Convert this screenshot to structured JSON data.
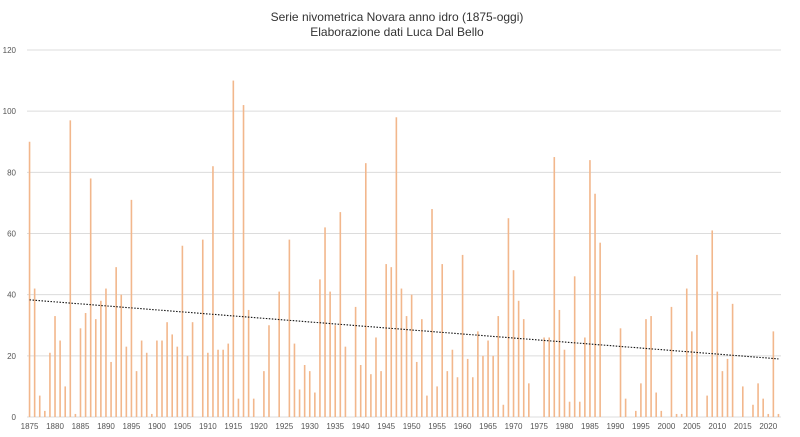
{
  "chart_data": {
    "type": "bar",
    "title": "Serie nivometrica Novara anno idro (1875-oggi)",
    "subtitle": "Elaborazione dati Luca Dal Bello",
    "xlabel": "",
    "ylabel": "",
    "ylim": [
      0,
      120
    ],
    "yticks": [
      "0",
      "20",
      "40",
      "60",
      "80",
      "100",
      "120"
    ],
    "xticks": [
      "1875",
      "1880",
      "1885",
      "1890",
      "1895",
      "1900",
      "1905",
      "1910",
      "1915",
      "1920",
      "1925",
      "1930",
      "1935",
      "1940",
      "1945",
      "1950",
      "1955",
      "1960",
      "1965",
      "1970",
      "1975",
      "1980",
      "1985",
      "1990",
      "1995",
      "2000",
      "2005",
      "2010",
      "2015",
      "2020"
    ],
    "grid": true,
    "legend": "none",
    "x_start": 1875,
    "categories": [
      1875,
      1876,
      1877,
      1878,
      1879,
      1880,
      1881,
      1882,
      1883,
      1884,
      1885,
      1886,
      1887,
      1888,
      1889,
      1890,
      1891,
      1892,
      1893,
      1894,
      1895,
      1896,
      1897,
      1898,
      1899,
      1900,
      1901,
      1902,
      1903,
      1904,
      1905,
      1906,
      1907,
      1908,
      1909,
      1910,
      1911,
      1912,
      1913,
      1914,
      1915,
      1916,
      1917,
      1918,
      1919,
      1920,
      1921,
      1922,
      1923,
      1924,
      1925,
      1926,
      1927,
      1928,
      1929,
      1930,
      1931,
      1932,
      1933,
      1934,
      1935,
      1936,
      1937,
      1938,
      1939,
      1940,
      1941,
      1942,
      1943,
      1944,
      1945,
      1946,
      1947,
      1948,
      1949,
      1950,
      1951,
      1952,
      1953,
      1954,
      1955,
      1956,
      1957,
      1958,
      1959,
      1960,
      1961,
      1962,
      1963,
      1964,
      1965,
      1966,
      1967,
      1968,
      1969,
      1970,
      1971,
      1972,
      1973,
      1974,
      1975,
      1976,
      1977,
      1978,
      1979,
      1980,
      1981,
      1982,
      1983,
      1984,
      1985,
      1986,
      1987,
      1988,
      1989,
      1990,
      1991,
      1992,
      1993,
      1994,
      1995,
      1996,
      1997,
      1998,
      1999,
      2000,
      2001,
      2002,
      2003,
      2004,
      2005,
      2006,
      2007,
      2008,
      2009,
      2010,
      2011,
      2012,
      2013,
      2014,
      2015,
      2016,
      2017,
      2018,
      2019,
      2020,
      2021,
      2022
    ],
    "values": [
      90,
      42,
      7,
      2,
      21,
      33,
      25,
      10,
      97,
      1,
      29,
      34,
      78,
      32,
      38,
      42,
      18,
      49,
      40,
      23,
      71,
      15,
      25,
      21,
      1,
      25,
      25,
      31,
      27,
      23,
      56,
      20,
      31,
      0,
      58,
      21,
      82,
      22,
      22,
      24,
      110,
      6,
      102,
      35,
      6,
      0,
      15,
      30,
      0,
      41,
      0,
      58,
      24,
      9,
      17,
      15,
      8,
      45,
      62,
      41,
      30,
      67,
      23,
      0,
      36,
      17,
      83,
      14,
      26,
      15,
      50,
      49,
      98,
      42,
      33,
      40,
      18,
      32,
      7,
      68,
      10,
      50,
      15,
      22,
      13,
      53,
      19,
      13,
      28,
      20,
      25,
      20,
      33,
      4,
      65,
      48,
      38,
      32,
      11,
      0,
      0,
      26,
      26,
      85,
      35,
      22,
      5,
      46,
      5,
      26,
      84,
      73,
      57,
      0,
      0,
      0,
      29,
      6,
      0,
      2,
      11,
      32,
      33,
      8,
      2,
      0,
      36,
      1,
      1,
      42,
      28,
      53,
      0,
      7,
      61,
      41,
      15,
      19,
      37,
      0,
      10,
      0,
      4,
      11,
      6,
      1,
      28,
      1
    ],
    "series": [
      {
        "name": "",
        "color": "#f2b78c"
      }
    ],
    "trendline": {
      "style": "dotted",
      "color": "#111111",
      "start": 38.3,
      "end": 19.0
    }
  }
}
